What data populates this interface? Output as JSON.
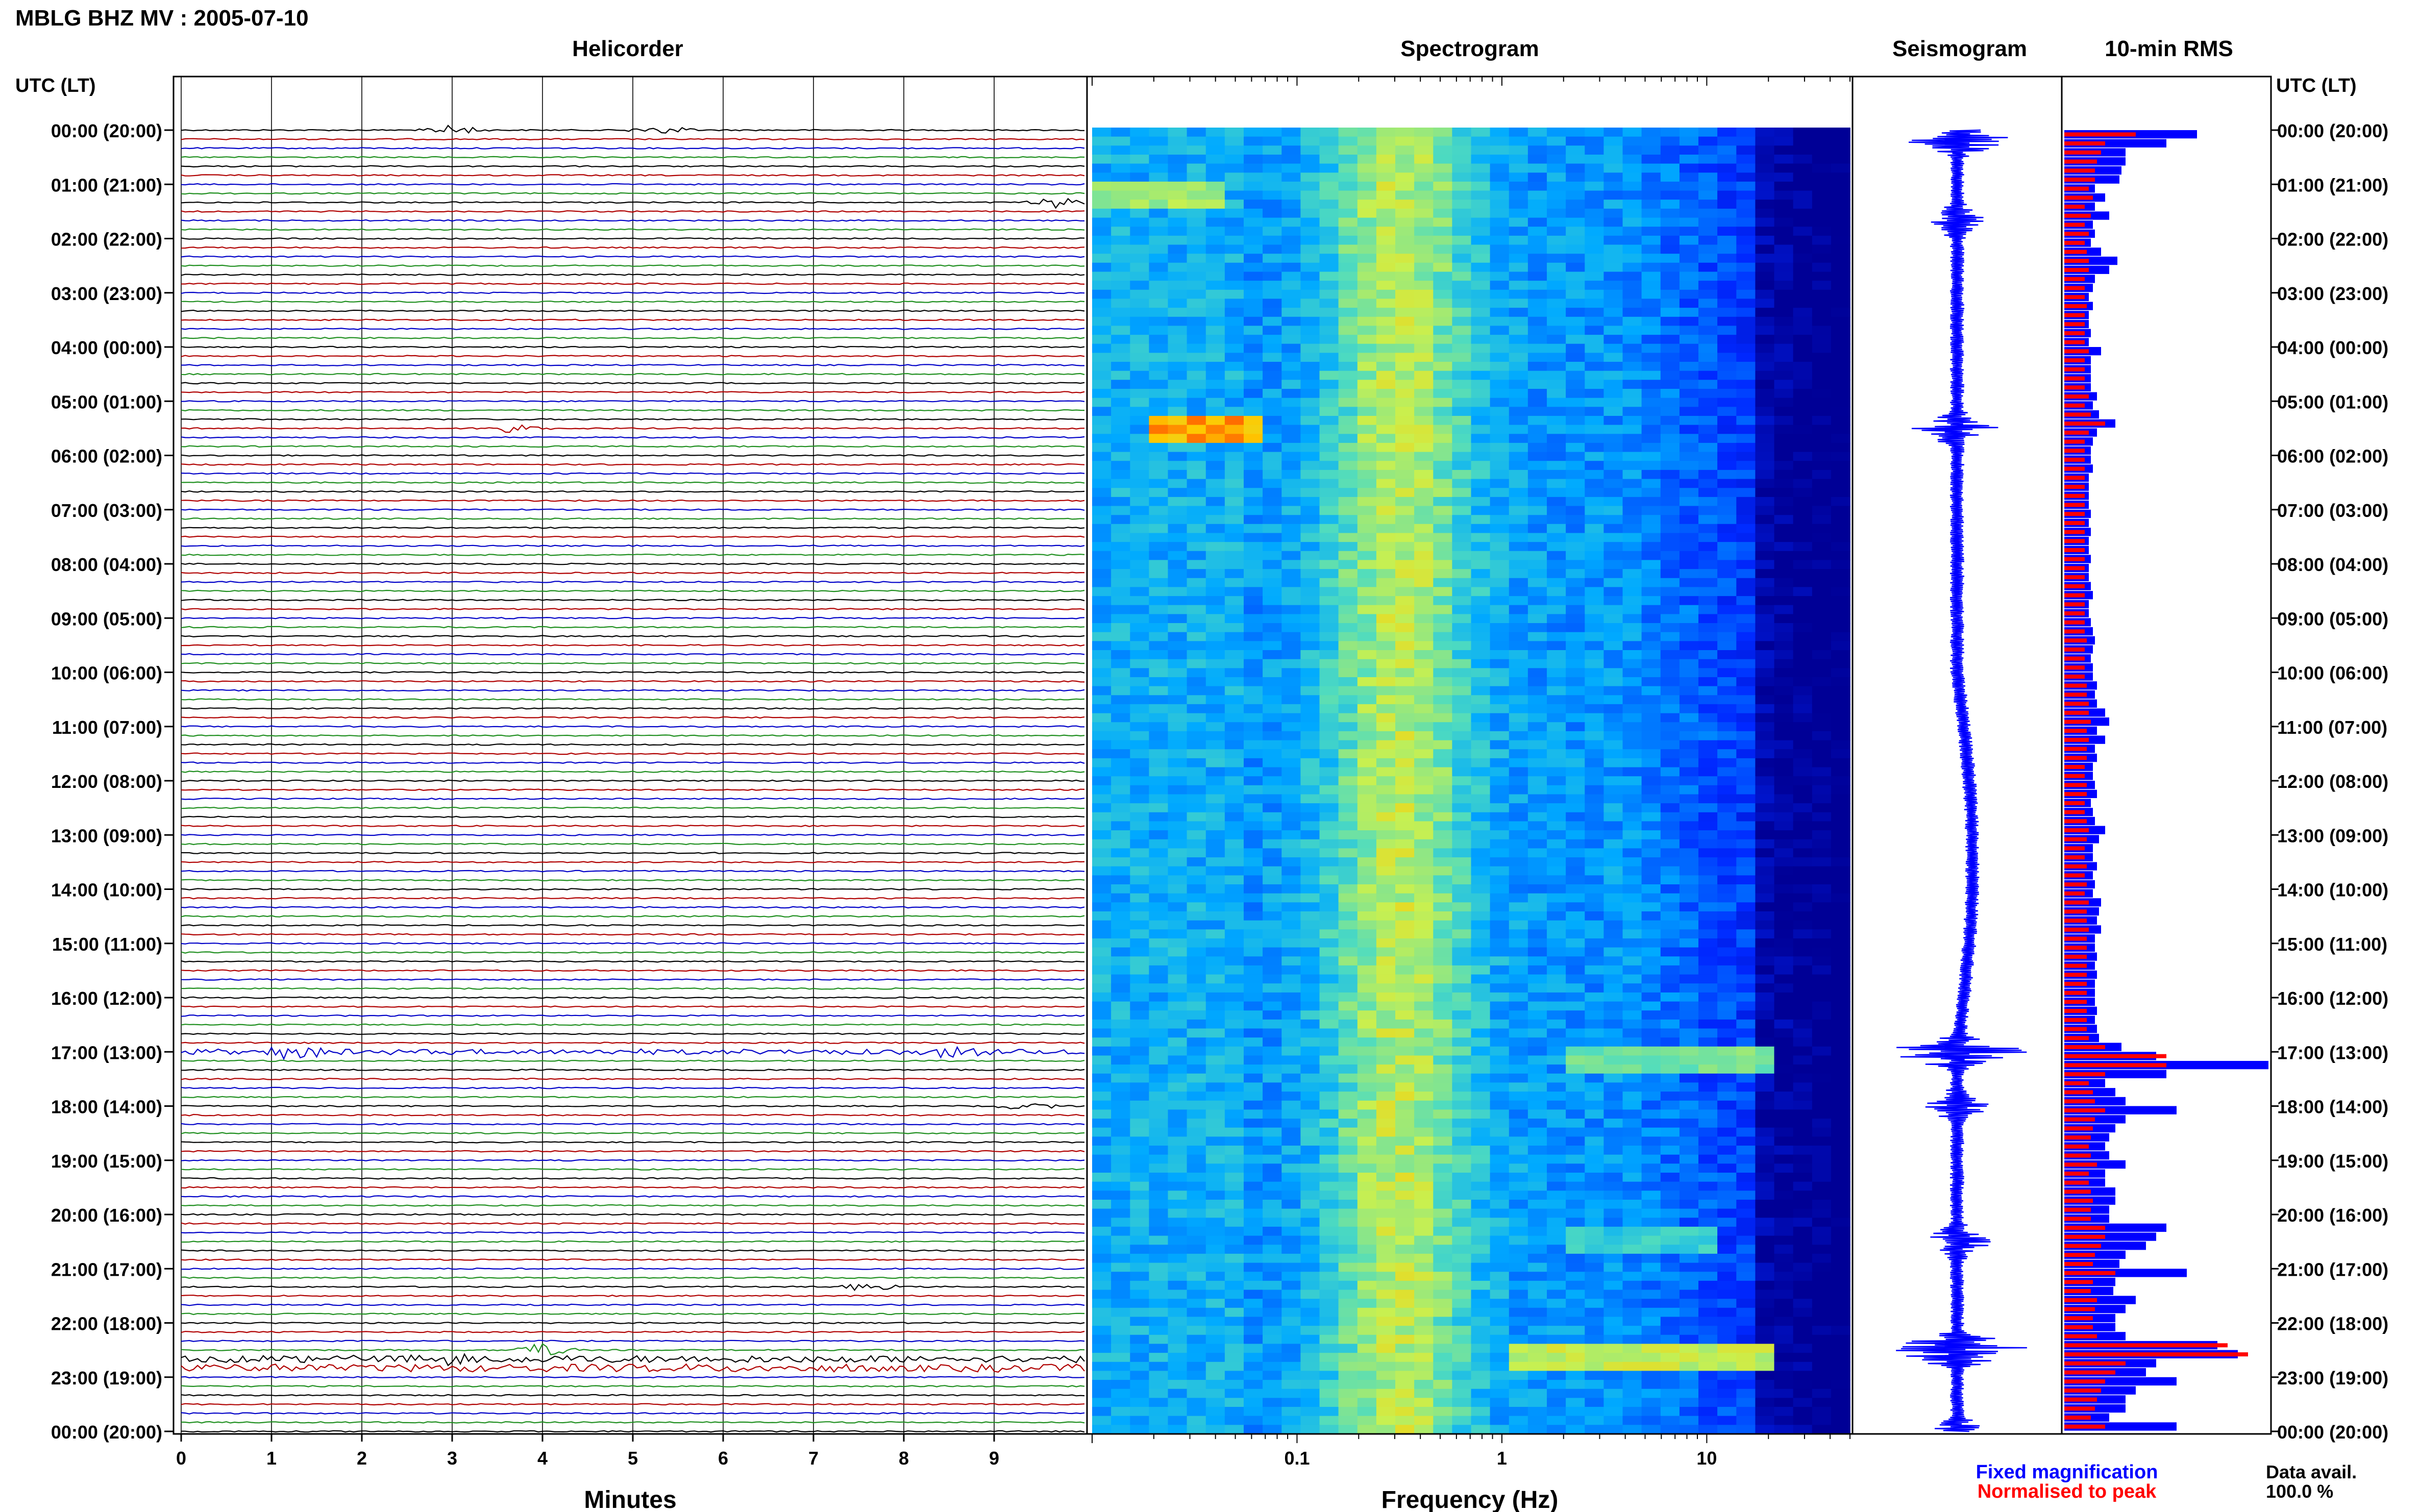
{
  "header": {
    "title": "MBLG BHZ MV : 2005-07-10",
    "panel_titles": [
      "Helicorder",
      "Spectrogram",
      "Seismogram",
      "10-min RMS"
    ],
    "left_axis_title": "UTC (LT)",
    "right_axis_title": "UTC (LT)"
  },
  "footer": {
    "minutes_label": "Minutes",
    "frequency_label": "Frequency (Hz)",
    "legend_fixed": "Fixed magnification",
    "legend_normalised": "Normalised to peak",
    "data_avail_label": "Data avail.",
    "data_avail_value": "100.0 %"
  },
  "colors": {
    "trace_cycle": [
      "#000000",
      "#b00000",
      "#0000c8",
      "#1f8f1f"
    ],
    "fixed": "#0000ff",
    "normalised": "#ff0000",
    "spectrogram_low": "#00009a",
    "spectrogram_high": "#ff3000"
  },
  "chart_data": [
    {
      "type": "line",
      "panel": "Helicorder",
      "xlabel": "Minutes",
      "x_ticks": [
        "0",
        "1",
        "2",
        "3",
        "4",
        "5",
        "6",
        "7",
        "8",
        "9"
      ],
      "xlim": [
        0,
        10
      ],
      "rows_per_hour": 6,
      "grid": true,
      "events": [
        {
          "hour": 0.0,
          "minute": 3.0,
          "amp": 1.0
        },
        {
          "hour": 0.0,
          "minute": 5.3,
          "amp": 0.9
        },
        {
          "hour": 1.33,
          "minute": 9.7,
          "amp": 1.0
        },
        {
          "hour": 5.5,
          "minute": 3.7,
          "amp": 0.8
        },
        {
          "hour": 17.0,
          "minute": 1.2,
          "amp": 1.6
        },
        {
          "hour": 17.0,
          "minute": 8.5,
          "amp": 1.2
        },
        {
          "hour": 18.0,
          "minute": 9.4,
          "amp": 0.8
        },
        {
          "hour": 21.33,
          "minute": 7.6,
          "amp": 0.8
        },
        {
          "hour": 22.5,
          "minute": 4.0,
          "amp": 1.4
        },
        {
          "hour": 22.67,
          "minute": 3.0,
          "amp": 1.2
        }
      ]
    },
    {
      "type": "heatmap",
      "panel": "Spectrogram",
      "xlabel": "Frequency (Hz)",
      "x_scale": "log",
      "xlim": [
        0.01,
        50
      ],
      "x_ticks": [
        "0.1",
        "1",
        "10"
      ],
      "hot_spots": [
        {
          "hour": 1.2,
          "f_lo": 0.01,
          "f_hi": 0.04,
          "level": 0.75
        },
        {
          "hour": 5.5,
          "f_lo": 0.02,
          "f_hi": 0.07,
          "level": 0.95
        },
        {
          "hour": 17.0,
          "f_lo": 2.0,
          "f_hi": 20.0,
          "level": 0.7
        },
        {
          "hour": 20.33,
          "f_lo": 2.0,
          "f_hi": 12.0,
          "level": 0.6
        },
        {
          "hour": 22.5,
          "f_lo": 1.0,
          "f_hi": 20.0,
          "level": 0.8
        }
      ]
    },
    {
      "type": "line",
      "panel": "Seismogram",
      "bursts": [
        {
          "hour": 0.17,
          "amp": 0.55
        },
        {
          "hour": 1.67,
          "amp": 0.3
        },
        {
          "hour": 5.5,
          "amp": 0.45
        },
        {
          "hour": 17.0,
          "amp": 0.8
        },
        {
          "hour": 18.0,
          "amp": 0.35
        },
        {
          "hour": 20.5,
          "amp": 0.35
        },
        {
          "hour": 22.5,
          "amp": 0.95
        },
        {
          "hour": 24.0,
          "amp": 0.3
        }
      ]
    },
    {
      "type": "bar",
      "panel": "10-min RMS",
      "series": [
        {
          "name": "Fixed magnification",
          "values": [
            0.65,
            0.5,
            0.3,
            0.3,
            0.28,
            0.27,
            0.15,
            0.2,
            0.15,
            0.22,
            0.14,
            0.15,
            0.13,
            0.18,
            0.26,
            0.22,
            0.15,
            0.14,
            0.12,
            0.14,
            0.12,
            0.12,
            0.13,
            0.12,
            0.18,
            0.13,
            0.13,
            0.13,
            0.13,
            0.16,
            0.14,
            0.17,
            0.25,
            0.16,
            0.14,
            0.13,
            0.13,
            0.14,
            0.12,
            0.12,
            0.12,
            0.12,
            0.13,
            0.12,
            0.13,
            0.12,
            0.12,
            0.13,
            0.12,
            0.12,
            0.13,
            0.14,
            0.12,
            0.12,
            0.13,
            0.14,
            0.15,
            0.14,
            0.13,
            0.14,
            0.14,
            0.16,
            0.15,
            0.16,
            0.2,
            0.22,
            0.16,
            0.2,
            0.15,
            0.16,
            0.14,
            0.14,
            0.15,
            0.16,
            0.13,
            0.14,
            0.15,
            0.2,
            0.17,
            0.14,
            0.14,
            0.16,
            0.14,
            0.15,
            0.14,
            0.18,
            0.17,
            0.16,
            0.18,
            0.15,
            0.15,
            0.16,
            0.15,
            0.16,
            0.15,
            0.15,
            0.15,
            0.16,
            0.15,
            0.16,
            0.17,
            0.28,
            0.45,
            1.0,
            0.5,
            0.2,
            0.25,
            0.3,
            0.55,
            0.3,
            0.25,
            0.22,
            0.2,
            0.22,
            0.3,
            0.2,
            0.2,
            0.25,
            0.25,
            0.22,
            0.22,
            0.5,
            0.45,
            0.4,
            0.3,
            0.27,
            0.6,
            0.25,
            0.24,
            0.35,
            0.3,
            0.25,
            0.25,
            0.3,
            0.75,
            0.85,
            0.45,
            0.4,
            0.55,
            0.35,
            0.3,
            0.3,
            0.22,
            0.55
          ]
        },
        {
          "name": "Normalised to peak",
          "values": [
            0.35,
            0.2,
            0.18,
            0.16,
            0.15,
            0.15,
            0.12,
            0.14,
            0.1,
            0.13,
            0.1,
            0.12,
            0.1,
            0.11,
            0.12,
            0.12,
            0.1,
            0.1,
            0.1,
            0.11,
            0.1,
            0.1,
            0.1,
            0.1,
            0.12,
            0.1,
            0.1,
            0.1,
            0.1,
            0.12,
            0.1,
            0.13,
            0.2,
            0.12,
            0.1,
            0.1,
            0.1,
            0.1,
            0.1,
            0.1,
            0.1,
            0.1,
            0.1,
            0.1,
            0.1,
            0.1,
            0.1,
            0.1,
            0.1,
            0.1,
            0.1,
            0.1,
            0.1,
            0.1,
            0.1,
            0.1,
            0.11,
            0.1,
            0.1,
            0.1,
            0.1,
            0.11,
            0.11,
            0.12,
            0.12,
            0.13,
            0.11,
            0.12,
            0.11,
            0.11,
            0.1,
            0.1,
            0.11,
            0.11,
            0.1,
            0.1,
            0.11,
            0.12,
            0.11,
            0.1,
            0.1,
            0.11,
            0.1,
            0.11,
            0.1,
            0.12,
            0.11,
            0.11,
            0.12,
            0.11,
            0.11,
            0.11,
            0.11,
            0.11,
            0.11,
            0.11,
            0.11,
            0.11,
            0.11,
            0.11,
            0.12,
            0.2,
            0.5,
            0.5,
            0.2,
            0.12,
            0.14,
            0.15,
            0.2,
            0.15,
            0.14,
            0.13,
            0.12,
            0.13,
            0.16,
            0.12,
            0.12,
            0.13,
            0.14,
            0.13,
            0.13,
            0.2,
            0.2,
            0.18,
            0.15,
            0.14,
            0.25,
            0.14,
            0.13,
            0.16,
            0.15,
            0.14,
            0.14,
            0.16,
            0.8,
            0.9,
            0.3,
            0.25,
            0.2,
            0.18,
            0.16,
            0.15,
            0.13,
            0.2
          ]
        }
      ]
    }
  ],
  "time_axis": {
    "utc_labels": [
      "00:00 (20:00)",
      "01:00 (21:00)",
      "02:00 (22:00)",
      "03:00 (23:00)",
      "04:00 (00:00)",
      "05:00 (01:00)",
      "06:00 (02:00)",
      "07:00 (03:00)",
      "08:00 (04:00)",
      "09:00 (05:00)",
      "10:00 (06:00)",
      "11:00 (07:00)",
      "12:00 (08:00)",
      "13:00 (09:00)",
      "14:00 (10:00)",
      "15:00 (11:00)",
      "16:00 (12:00)",
      "17:00 (13:00)",
      "18:00 (14:00)",
      "19:00 (15:00)",
      "20:00 (16:00)",
      "21:00 (17:00)",
      "22:00 (18:00)",
      "23:00 (19:00)",
      "00:00 (20:00)"
    ]
  }
}
